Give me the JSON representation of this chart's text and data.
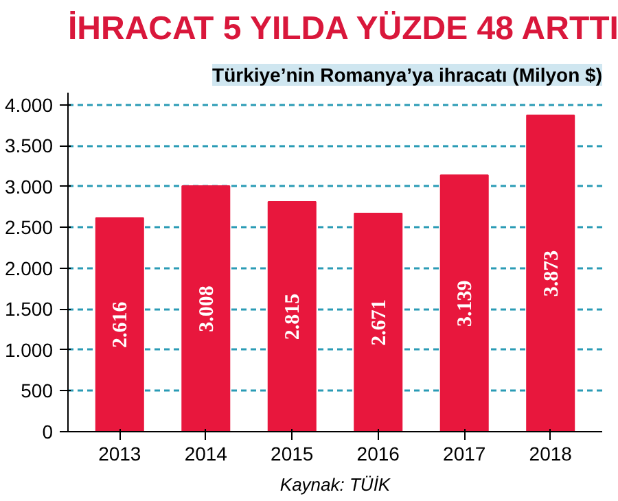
{
  "chart_data": {
    "type": "bar",
    "title": "İHRACAT 5 YILDA YÜZDE 48 ARTTI",
    "subtitle": "Türkiye’nin Romanya’ya ihracatı (Milyon $)",
    "categories": [
      "2013",
      "2014",
      "2015",
      "2016",
      "2017",
      "2018"
    ],
    "values": [
      2616,
      3008,
      2815,
      2671,
      3139,
      3873
    ],
    "value_labels": [
      "2.616",
      "3.008",
      "2.815",
      "2.671",
      "3.139",
      "3.873"
    ],
    "color": "#e8173d",
    "ylim": [
      0,
      4150
    ],
    "yticks": [
      {
        "value": 0,
        "label": "0"
      },
      {
        "value": 500,
        "label": "500"
      },
      {
        "value": 1000,
        "label": "1.000"
      },
      {
        "value": 1500,
        "label": "1.500"
      },
      {
        "value": 2000,
        "label": "2.000"
      },
      {
        "value": 2500,
        "label": "2.500"
      },
      {
        "value": 3000,
        "label": "3.000"
      },
      {
        "value": 3500,
        "label": "3.500"
      },
      {
        "value": 4000,
        "label": "4.000"
      }
    ],
    "grid": "y",
    "annotations": [
      "Kaynak: TÜİK"
    ]
  }
}
